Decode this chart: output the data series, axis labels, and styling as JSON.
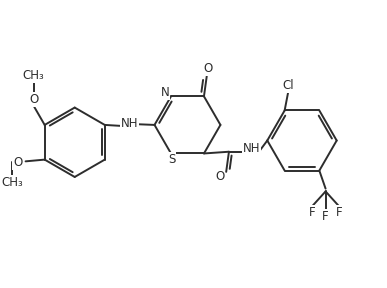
{
  "background_color": "#ffffff",
  "line_color": "#2d2d2d",
  "lw": 1.4,
  "fs": 8.5,
  "figsize": [
    3.87,
    2.88
  ],
  "dpi": 100,
  "xlim": [
    0,
    11
  ],
  "ylim": [
    0,
    8
  ]
}
